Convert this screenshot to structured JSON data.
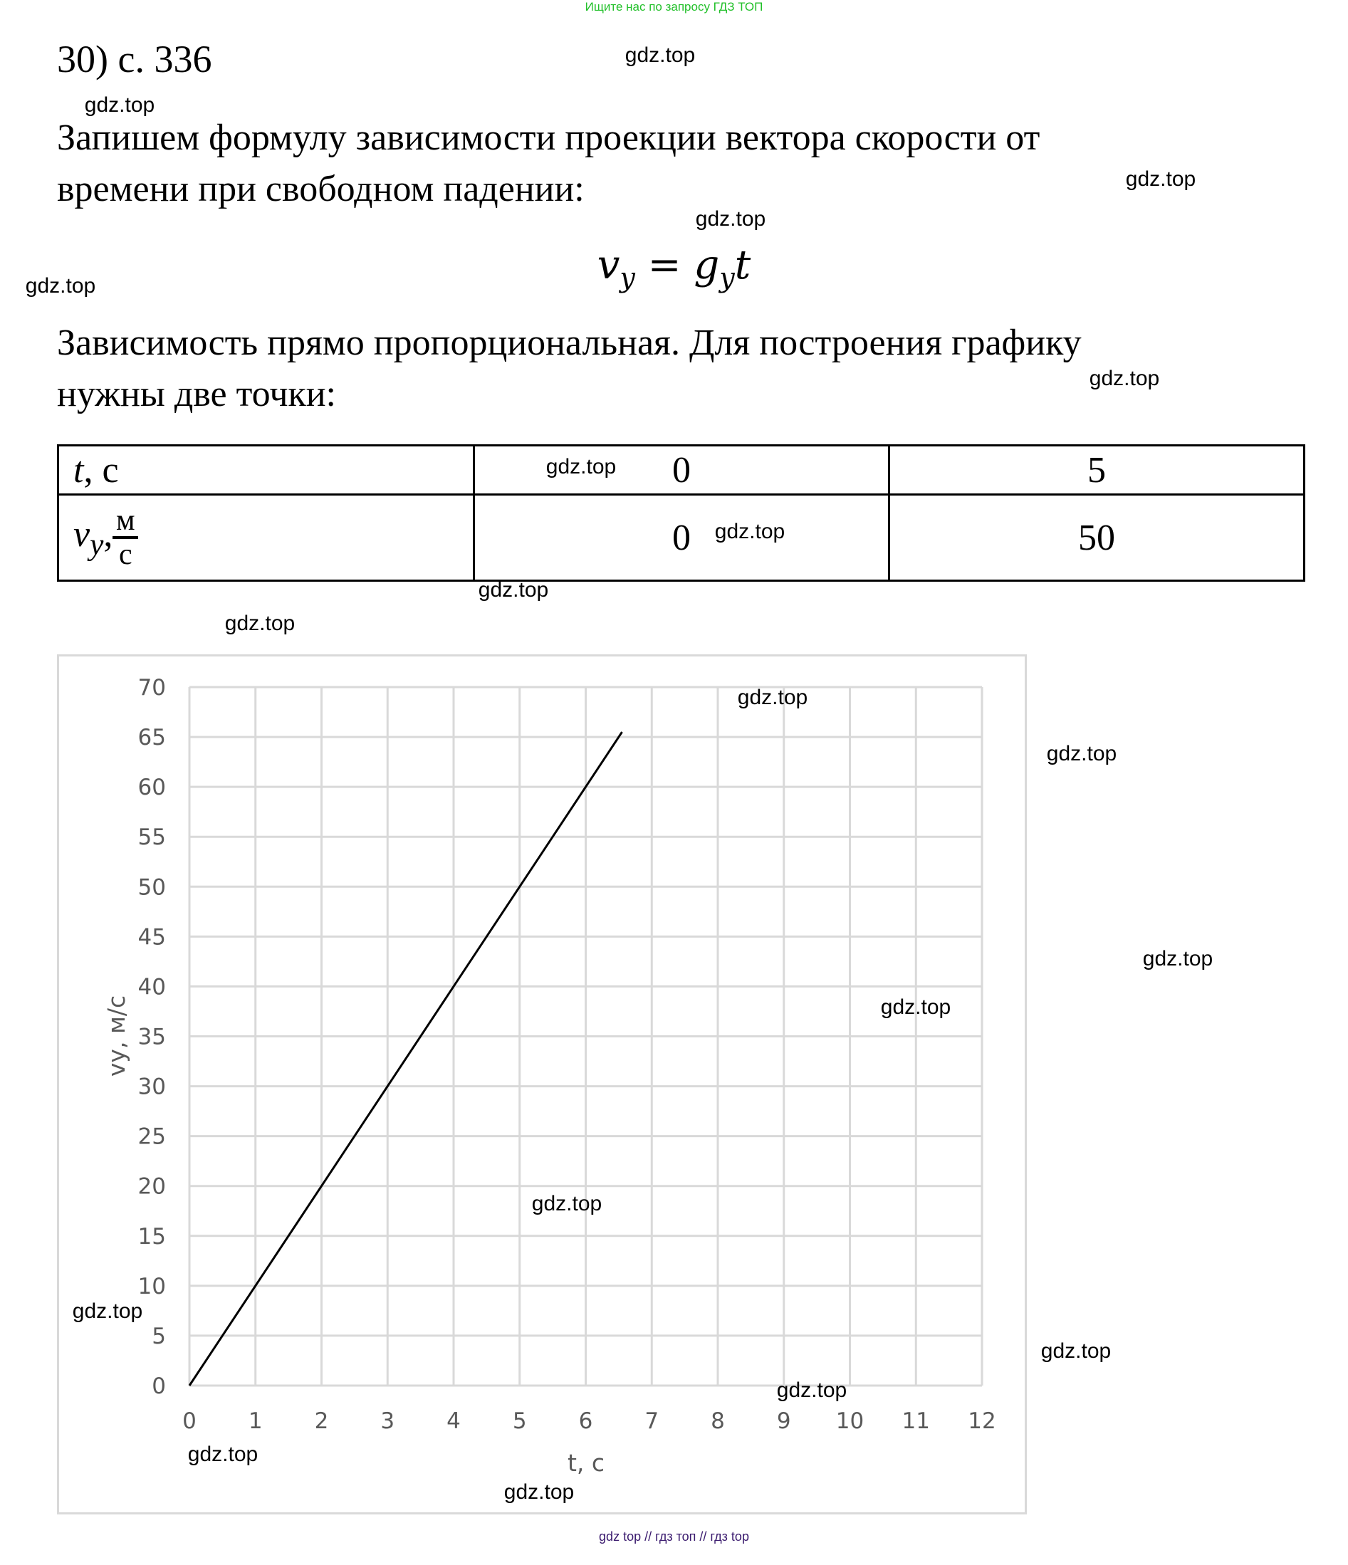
{
  "banner": "Ищите нас по запросу ГДЗ ТОП",
  "problem_number": "30) с. 336",
  "paragraph1": [
    "Запишем формулу зависимости проекции вектора скорости от",
    "времени при свободном падении:"
  ],
  "formula": {
    "lhs": "v",
    "lhs_sub": "y",
    "eq": " = ",
    "rhs": "g",
    "rhs_sub": "y",
    "rhs_tail": "t"
  },
  "paragraph2": [
    "Зависимость прямо пропорциональная. Для построения графику",
    "нужны две точки:"
  ],
  "table": {
    "row1": {
      "label_var": "t",
      "label_unit": ", с",
      "values": [
        "0",
        "5"
      ]
    },
    "row2": {
      "label_var": "v",
      "label_sub": "y",
      "label_sep": ",",
      "unit_num": "м",
      "unit_den": "с",
      "values": [
        "0",
        "50"
      ]
    }
  },
  "chart_data": {
    "type": "line",
    "xlabel": "t, c",
    "ylabel": "vy, м/с",
    "xlim": [
      0,
      12
    ],
    "ylim": [
      0,
      70
    ],
    "x_ticks": [
      "0",
      "1",
      "2",
      "3",
      "4",
      "5",
      "6",
      "7",
      "8",
      "9",
      "10",
      "11",
      "12"
    ],
    "y_ticks": [
      "0",
      "5",
      "10",
      "15",
      "20",
      "25",
      "30",
      "35",
      "40",
      "45",
      "50",
      "55",
      "60",
      "65",
      "70"
    ],
    "grid": true,
    "series": [
      {
        "x": [
          0,
          6.55
        ],
        "y": [
          0,
          65.5
        ],
        "color": "#000000"
      }
    ]
  },
  "watermark": "gdz.top",
  "footer": "gdz top  //  гдз топ  //  гдз top",
  "colors": {
    "banner": "#22c02a",
    "grid": "#d9d9d9",
    "tick_text": "#595959",
    "footer": "#3a1a6e"
  }
}
